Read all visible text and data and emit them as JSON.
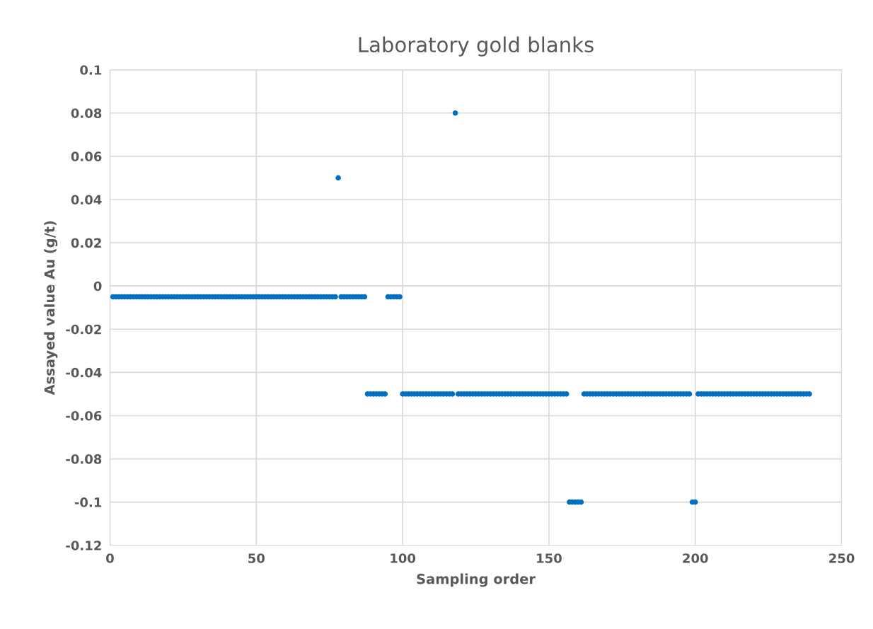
{
  "chart_data": {
    "type": "scatter",
    "title": "Laboratory gold blanks",
    "xlabel": "Sampling order",
    "ylabel": "Assayed value Au (g/t)",
    "xlim": [
      0,
      250
    ],
    "xticks": [
      0,
      50,
      100,
      150,
      200,
      250
    ],
    "ylim": [
      -0.12,
      0.1
    ],
    "yticks": [
      -0.12,
      -0.1,
      -0.08,
      -0.06,
      -0.04,
      -0.02,
      0,
      0.02,
      0.04,
      0.06,
      0.08,
      0.1
    ],
    "grid": true,
    "marker": "circle",
    "series": [
      {
        "color": "#0070c0",
        "x": [
          1,
          2,
          3,
          4,
          5,
          6,
          7,
          8,
          9,
          10,
          11,
          12,
          13,
          14,
          15,
          16,
          17,
          18,
          19,
          20,
          21,
          22,
          23,
          24,
          25,
          26,
          27,
          28,
          29,
          30,
          31,
          32,
          33,
          34,
          35,
          36,
          37,
          38,
          39,
          40,
          41,
          42,
          43,
          44,
          45,
          46,
          47,
          48,
          49,
          50,
          51,
          52,
          53,
          54,
          55,
          56,
          57,
          58,
          59,
          60,
          61,
          62,
          63,
          64,
          65,
          66,
          67,
          68,
          69,
          70,
          71,
          72,
          73,
          74,
          75,
          76,
          77,
          78,
          79,
          80,
          81,
          82,
          83,
          84,
          85,
          86,
          87,
          88,
          89,
          90,
          91,
          92,
          93,
          94,
          95,
          96,
          97,
          98,
          99,
          100,
          101,
          102,
          103,
          104,
          105,
          106,
          107,
          108,
          109,
          110,
          111,
          112,
          113,
          114,
          115,
          116,
          117,
          118,
          119,
          120,
          121,
          122,
          123,
          124,
          125,
          126,
          127,
          128,
          129,
          130,
          131,
          132,
          133,
          134,
          135,
          136,
          137,
          138,
          139,
          140,
          141,
          142,
          143,
          144,
          145,
          146,
          147,
          148,
          149,
          150,
          151,
          152,
          153,
          154,
          155,
          156,
          157,
          158,
          159,
          160,
          161,
          162,
          163,
          164,
          165,
          166,
          167,
          168,
          169,
          170,
          171,
          172,
          173,
          174,
          175,
          176,
          177,
          178,
          179,
          180,
          181,
          182,
          183,
          184,
          185,
          186,
          187,
          188,
          189,
          190,
          191,
          192,
          193,
          194,
          195,
          196,
          197,
          198,
          199,
          200,
          201,
          202,
          203,
          204,
          205,
          206,
          207,
          208,
          209,
          210,
          211,
          212,
          213,
          214,
          215,
          216,
          217,
          218,
          219,
          220,
          221,
          222,
          223,
          224,
          225,
          226,
          227,
          228,
          229,
          230,
          231,
          232,
          233,
          234,
          235,
          236,
          237,
          238,
          239
        ],
        "values": [
          -0.005,
          -0.005,
          -0.005,
          -0.005,
          -0.005,
          -0.005,
          -0.005,
          -0.005,
          -0.005,
          -0.005,
          -0.005,
          -0.005,
          -0.005,
          -0.005,
          -0.005,
          -0.005,
          -0.005,
          -0.005,
          -0.005,
          -0.005,
          -0.005,
          -0.005,
          -0.005,
          -0.005,
          -0.005,
          -0.005,
          -0.005,
          -0.005,
          -0.005,
          -0.005,
          -0.005,
          -0.005,
          -0.005,
          -0.005,
          -0.005,
          -0.005,
          -0.005,
          -0.005,
          -0.005,
          -0.005,
          -0.005,
          -0.005,
          -0.005,
          -0.005,
          -0.005,
          -0.005,
          -0.005,
          -0.005,
          -0.005,
          -0.005,
          -0.005,
          -0.005,
          -0.005,
          -0.005,
          -0.005,
          -0.005,
          -0.005,
          -0.005,
          -0.005,
          -0.005,
          -0.005,
          -0.005,
          -0.005,
          -0.005,
          -0.005,
          -0.005,
          -0.005,
          -0.005,
          -0.005,
          -0.005,
          -0.005,
          -0.005,
          -0.005,
          -0.005,
          -0.005,
          -0.005,
          -0.005,
          0.05,
          -0.005,
          -0.005,
          -0.005,
          -0.005,
          -0.005,
          -0.005,
          -0.005,
          -0.005,
          -0.005,
          -0.05,
          -0.05,
          -0.05,
          -0.05,
          -0.05,
          -0.05,
          -0.05,
          -0.005,
          -0.005,
          -0.005,
          -0.005,
          -0.005,
          -0.05,
          -0.05,
          -0.05,
          -0.05,
          -0.05,
          -0.05,
          -0.05,
          -0.05,
          -0.05,
          -0.05,
          -0.05,
          -0.05,
          -0.05,
          -0.05,
          -0.05,
          -0.05,
          -0.05,
          -0.05,
          0.08,
          -0.05,
          -0.05,
          -0.05,
          -0.05,
          -0.05,
          -0.05,
          -0.05,
          -0.05,
          -0.05,
          -0.05,
          -0.05,
          -0.05,
          -0.05,
          -0.05,
          -0.05,
          -0.05,
          -0.05,
          -0.05,
          -0.05,
          -0.05,
          -0.05,
          -0.05,
          -0.05,
          -0.05,
          -0.05,
          -0.05,
          -0.05,
          -0.05,
          -0.05,
          -0.05,
          -0.05,
          -0.05,
          -0.05,
          -0.05,
          -0.05,
          -0.05,
          -0.05,
          -0.05,
          -0.1,
          -0.1,
          -0.1,
          -0.1,
          -0.1,
          -0.05,
          -0.05,
          -0.05,
          -0.05,
          -0.05,
          -0.05,
          -0.05,
          -0.05,
          -0.05,
          -0.05,
          -0.05,
          -0.05,
          -0.05,
          -0.05,
          -0.05,
          -0.05,
          -0.05,
          -0.05,
          -0.05,
          -0.05,
          -0.05,
          -0.05,
          -0.05,
          -0.05,
          -0.05,
          -0.05,
          -0.05,
          -0.05,
          -0.05,
          -0.05,
          -0.05,
          -0.05,
          -0.05,
          -0.05,
          -0.05,
          -0.05,
          -0.05,
          -0.1,
          -0.1,
          -0.05,
          -0.05,
          -0.05,
          -0.05,
          -0.05,
          -0.05,
          -0.05,
          -0.05,
          -0.05,
          -0.05,
          -0.05,
          -0.05,
          -0.05,
          -0.05,
          -0.05,
          -0.05,
          -0.05,
          -0.05,
          -0.05,
          -0.05,
          -0.05,
          -0.05,
          -0.05,
          -0.05,
          -0.05,
          -0.05,
          -0.05,
          -0.05,
          -0.05,
          -0.05,
          -0.05,
          -0.05,
          -0.05,
          -0.05,
          -0.05,
          -0.05,
          -0.05,
          -0.05,
          -0.05
        ]
      }
    ]
  }
}
